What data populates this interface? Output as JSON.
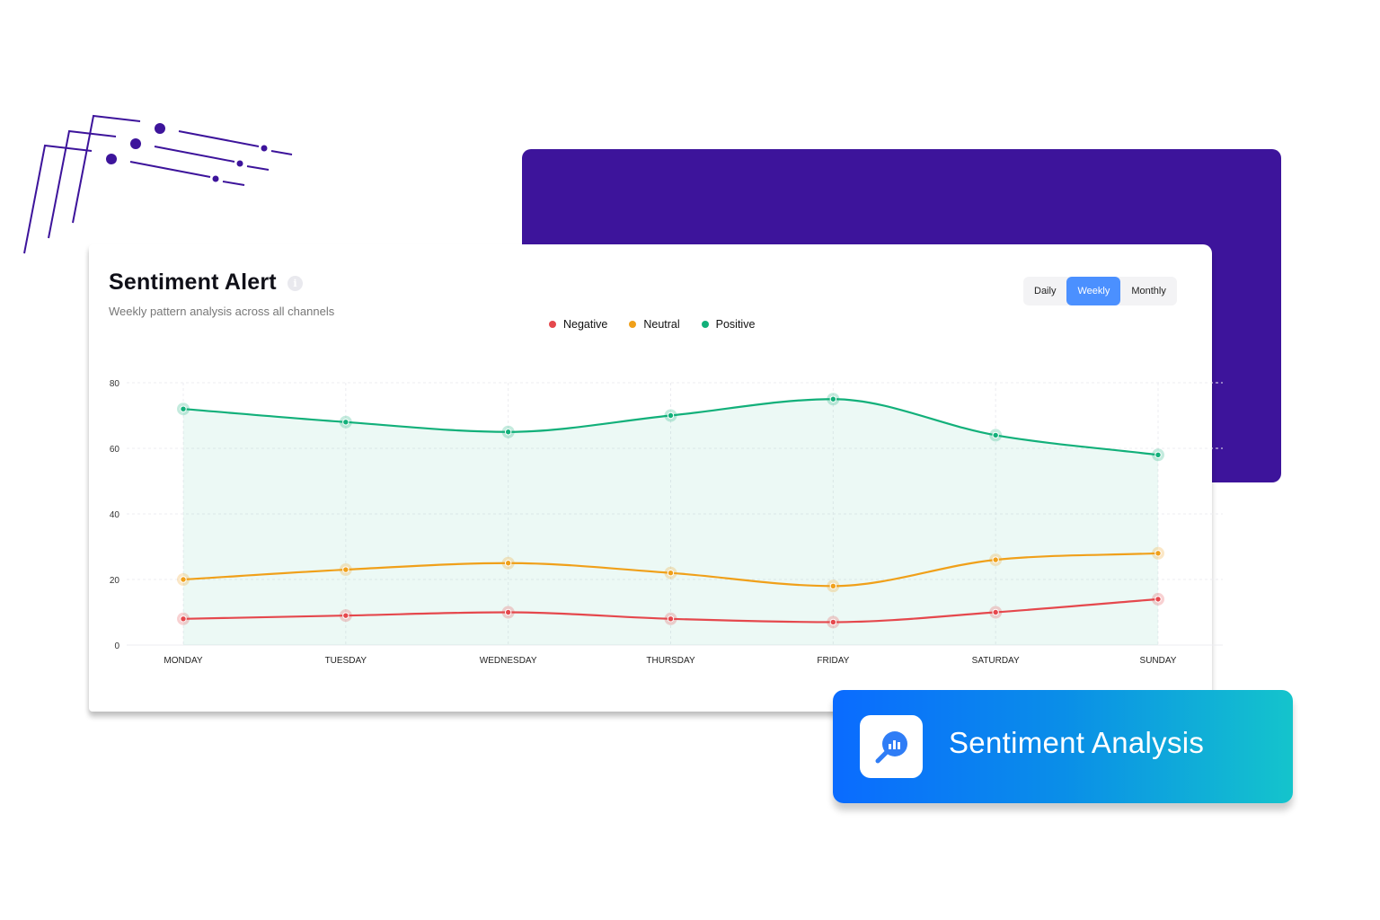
{
  "card": {
    "title": "Sentiment Alert",
    "subtitle": "Weekly pattern analysis across all channels"
  },
  "toggle": {
    "options": [
      "Daily",
      "Weekly",
      "Monthly"
    ],
    "selected": "Weekly"
  },
  "badge": {
    "label": "Sentiment Analysis",
    "icon": "magnifier-chart-icon"
  },
  "colors": {
    "negative": "#e5484d",
    "neutral": "#f0a01a",
    "positive": "#12b07a",
    "accent": "#4b90ff",
    "purple": "#3d149b"
  },
  "chart_data": {
    "type": "line",
    "categories": [
      "MONDAY",
      "TUESDAY",
      "WEDNESDAY",
      "THURSDAY",
      "FRIDAY",
      "SATURDAY",
      "SUNDAY"
    ],
    "series": [
      {
        "name": "Negative",
        "values": [
          8,
          9,
          10,
          8,
          7,
          10,
          14
        ],
        "color": "#e5484d"
      },
      {
        "name": "Neutral",
        "values": [
          20,
          23,
          25,
          22,
          18,
          26,
          28
        ],
        "color": "#f0a01a"
      },
      {
        "name": "Positive",
        "values": [
          72,
          68,
          65,
          70,
          75,
          64,
          58
        ],
        "color": "#12b07a",
        "fill": true
      }
    ],
    "yticks": [
      0,
      20,
      40,
      60,
      80
    ],
    "ylim": [
      0,
      80
    ],
    "grid": true,
    "legend": "top-center",
    "smooth": true
  }
}
